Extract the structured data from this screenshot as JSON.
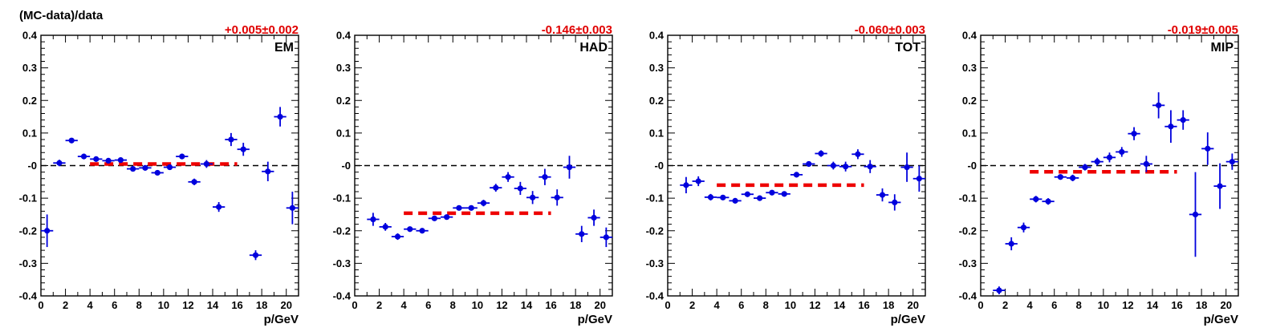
{
  "ylabel": "(MC-data)/data",
  "xlabel": "p/GeV",
  "colors": {
    "points": "#0000dd",
    "fit": "#ee0000",
    "zero_line": "#000000",
    "frame": "#000000"
  },
  "chart_data": [
    {
      "type": "scatter",
      "title": "EM",
      "fit_label": "+0.005±0.002",
      "fit_value": 0.005,
      "fit_range": [
        4,
        16
      ],
      "xlim": [
        0,
        21
      ],
      "ylim": [
        -0.4,
        0.4
      ],
      "x_ticks": [
        "0",
        "2",
        "4",
        "6",
        "8",
        "10",
        "12",
        "14",
        "16",
        "18",
        "20"
      ],
      "y_ticks": [
        "-0.4",
        "-0.3",
        "-0.2",
        "-0.1",
        "-0",
        "0.1",
        "0.2",
        "0.3",
        "0.4"
      ],
      "points": [
        {
          "x": 0.5,
          "y": -0.2,
          "err": 0.05
        },
        {
          "x": 1.5,
          "y": 0.008,
          "err": 0.01
        },
        {
          "x": 2.5,
          "y": 0.077,
          "err": 0.006
        },
        {
          "x": 3.5,
          "y": 0.028,
          "err": 0.005
        },
        {
          "x": 4.5,
          "y": 0.02,
          "err": 0.005
        },
        {
          "x": 5.5,
          "y": 0.015,
          "err": 0.005
        },
        {
          "x": 6.5,
          "y": 0.017,
          "err": 0.005
        },
        {
          "x": 7.5,
          "y": -0.01,
          "err": 0.006
        },
        {
          "x": 8.5,
          "y": -0.007,
          "err": 0.006
        },
        {
          "x": 9.5,
          "y": -0.022,
          "err": 0.007
        },
        {
          "x": 10.5,
          "y": -0.005,
          "err": 0.007
        },
        {
          "x": 11.5,
          "y": 0.028,
          "err": 0.008
        },
        {
          "x": 12.5,
          "y": -0.05,
          "err": 0.01
        },
        {
          "x": 13.5,
          "y": 0.005,
          "err": 0.012
        },
        {
          "x": 14.5,
          "y": -0.127,
          "err": 0.015
        },
        {
          "x": 15.5,
          "y": 0.08,
          "err": 0.02
        },
        {
          "x": 16.5,
          "y": 0.05,
          "err": 0.02
        },
        {
          "x": 17.5,
          "y": -0.275,
          "err": 0.015
        },
        {
          "x": 18.5,
          "y": -0.018,
          "err": 0.03
        },
        {
          "x": 19.5,
          "y": 0.15,
          "err": 0.03
        },
        {
          "x": 20.5,
          "y": -0.13,
          "err": 0.05
        }
      ]
    },
    {
      "type": "scatter",
      "title": "HAD",
      "fit_label": "-0.146±0.003",
      "fit_value": -0.146,
      "fit_range": [
        4,
        16
      ],
      "xlim": [
        0,
        21
      ],
      "ylim": [
        -0.4,
        0.4
      ],
      "x_ticks": [
        "0",
        "2",
        "4",
        "6",
        "8",
        "10",
        "12",
        "14",
        "16",
        "18",
        "20"
      ],
      "y_ticks": [
        "-0.4",
        "-0.3",
        "-0.2",
        "-0.1",
        "-0",
        "0.1",
        "0.2",
        "0.3",
        "0.4"
      ],
      "points": [
        {
          "x": 1.5,
          "y": -0.165,
          "err": 0.02
        },
        {
          "x": 2.5,
          "y": -0.188,
          "err": 0.012
        },
        {
          "x": 3.5,
          "y": -0.218,
          "err": 0.01
        },
        {
          "x": 4.5,
          "y": -0.195,
          "err": 0.006
        },
        {
          "x": 5.5,
          "y": -0.2,
          "err": 0.006
        },
        {
          "x": 6.5,
          "y": -0.162,
          "err": 0.006
        },
        {
          "x": 7.5,
          "y": -0.158,
          "err": 0.007
        },
        {
          "x": 8.5,
          "y": -0.13,
          "err": 0.007
        },
        {
          "x": 9.5,
          "y": -0.13,
          "err": 0.008
        },
        {
          "x": 10.5,
          "y": -0.115,
          "err": 0.01
        },
        {
          "x": 11.5,
          "y": -0.068,
          "err": 0.012
        },
        {
          "x": 12.5,
          "y": -0.035,
          "err": 0.015
        },
        {
          "x": 13.5,
          "y": -0.07,
          "err": 0.02
        },
        {
          "x": 14.5,
          "y": -0.098,
          "err": 0.02
        },
        {
          "x": 15.5,
          "y": -0.035,
          "err": 0.025
        },
        {
          "x": 16.5,
          "y": -0.098,
          "err": 0.025
        },
        {
          "x": 17.5,
          "y": -0.005,
          "err": 0.035
        },
        {
          "x": 18.5,
          "y": -0.21,
          "err": 0.025
        },
        {
          "x": 19.5,
          "y": -0.16,
          "err": 0.025
        },
        {
          "x": 20.5,
          "y": -0.22,
          "err": 0.03
        }
      ]
    },
    {
      "type": "scatter",
      "title": "TOT",
      "fit_label": "-0.060±0.003",
      "fit_value": -0.06,
      "fit_range": [
        4,
        16
      ],
      "xlim": [
        0,
        21
      ],
      "ylim": [
        -0.4,
        0.4
      ],
      "x_ticks": [
        "0",
        "2",
        "4",
        "6",
        "8",
        "10",
        "12",
        "14",
        "16",
        "18",
        "20"
      ],
      "y_ticks": [
        "-0.4",
        "-0.3",
        "-0.2",
        "-0.1",
        "-0",
        "0.1",
        "0.2",
        "0.3",
        "0.4"
      ],
      "points": [
        {
          "x": 1.5,
          "y": -0.06,
          "err": 0.025
        },
        {
          "x": 2.5,
          "y": -0.048,
          "err": 0.015
        },
        {
          "x": 3.5,
          "y": -0.097,
          "err": 0.01
        },
        {
          "x": 4.5,
          "y": -0.098,
          "err": 0.008
        },
        {
          "x": 5.5,
          "y": -0.108,
          "err": 0.006
        },
        {
          "x": 6.5,
          "y": -0.088,
          "err": 0.006
        },
        {
          "x": 7.5,
          "y": -0.1,
          "err": 0.006
        },
        {
          "x": 8.5,
          "y": -0.083,
          "err": 0.006
        },
        {
          "x": 9.5,
          "y": -0.087,
          "err": 0.007
        },
        {
          "x": 10.5,
          "y": -0.028,
          "err": 0.008
        },
        {
          "x": 11.5,
          "y": 0.005,
          "err": 0.008
        },
        {
          "x": 12.5,
          "y": 0.037,
          "err": 0.01
        },
        {
          "x": 13.5,
          "y": 0.0,
          "err": 0.012
        },
        {
          "x": 14.5,
          "y": -0.003,
          "err": 0.015
        },
        {
          "x": 15.5,
          "y": 0.035,
          "err": 0.015
        },
        {
          "x": 16.5,
          "y": -0.003,
          "err": 0.02
        },
        {
          "x": 17.5,
          "y": -0.09,
          "err": 0.02
        },
        {
          "x": 18.5,
          "y": -0.113,
          "err": 0.025
        },
        {
          "x": 19.5,
          "y": -0.005,
          "err": 0.045
        },
        {
          "x": 20.5,
          "y": -0.04,
          "err": 0.04
        }
      ]
    },
    {
      "type": "scatter",
      "title": "MIP",
      "fit_label": "-0.019±0.005",
      "fit_value": -0.019,
      "fit_range": [
        4,
        16
      ],
      "xlim": [
        0,
        21
      ],
      "ylim": [
        -0.4,
        0.4
      ],
      "x_ticks": [
        "0",
        "2",
        "4",
        "6",
        "8",
        "10",
        "12",
        "14",
        "16",
        "18",
        "20"
      ],
      "y_ticks": [
        "-0.4",
        "-0.3",
        "-0.2",
        "-0.1",
        "-0",
        "0.1",
        "0.2",
        "0.3",
        "0.4"
      ],
      "points": [
        {
          "x": 1.5,
          "y": -0.383,
          "err": 0.012
        },
        {
          "x": 2.5,
          "y": -0.24,
          "err": 0.02
        },
        {
          "x": 3.5,
          "y": -0.19,
          "err": 0.015
        },
        {
          "x": 4.5,
          "y": -0.103,
          "err": 0.01
        },
        {
          "x": 5.5,
          "y": -0.11,
          "err": 0.01
        },
        {
          "x": 6.5,
          "y": -0.035,
          "err": 0.008
        },
        {
          "x": 7.5,
          "y": -0.038,
          "err": 0.01
        },
        {
          "x": 8.5,
          "y": -0.005,
          "err": 0.01
        },
        {
          "x": 9.5,
          "y": 0.012,
          "err": 0.012
        },
        {
          "x": 10.5,
          "y": 0.025,
          "err": 0.015
        },
        {
          "x": 11.5,
          "y": 0.042,
          "err": 0.015
        },
        {
          "x": 12.5,
          "y": 0.098,
          "err": 0.02
        },
        {
          "x": 13.5,
          "y": 0.005,
          "err": 0.025
        },
        {
          "x": 14.5,
          "y": 0.185,
          "err": 0.04
        },
        {
          "x": 15.5,
          "y": 0.12,
          "err": 0.05
        },
        {
          "x": 16.5,
          "y": 0.14,
          "err": 0.03
        },
        {
          "x": 17.5,
          "y": -0.15,
          "err": 0.13
        },
        {
          "x": 18.5,
          "y": 0.052,
          "err": 0.05
        },
        {
          "x": 19.5,
          "y": -0.063,
          "err": 0.07
        },
        {
          "x": 20.5,
          "y": 0.012,
          "err": 0.025
        }
      ]
    }
  ]
}
